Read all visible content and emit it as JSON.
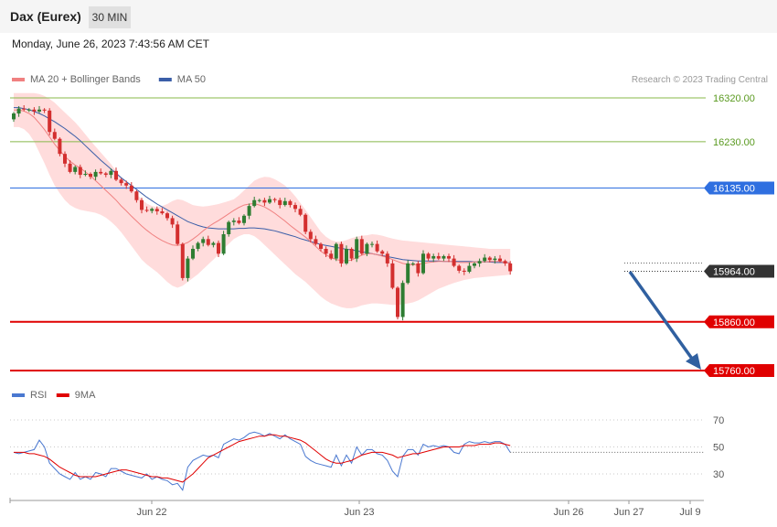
{
  "header": {
    "title": "Dax (Eurex)",
    "timeframe": "30 MIN"
  },
  "datetime": "Monday, June 26, 2023 7:43:56 AM CET",
  "copyright": "Research © 2023 Trading Central",
  "colors": {
    "support": "#e00000",
    "pivot": "#2f6fe0",
    "resistance": "#88b84a",
    "bollinger": "#ffdcdc",
    "ma20": "#f08080",
    "ma50": "#3a5ea8",
    "rsi": "#4a78d0",
    "rsi_ma": "#e00000",
    "up": "#2e7d32",
    "down": "#d32f2f",
    "arrow": "#3060a0"
  },
  "chart_data": [
    {
      "type": "candlestick",
      "legend": [
        {
          "name": "MA 20 + Bollinger Bands",
          "color": "#f08080"
        },
        {
          "name": "MA 50",
          "color": "#3a5ea8"
        }
      ],
      "levels": [
        {
          "label": "16320.00",
          "value": 16320,
          "kind": "resistance"
        },
        {
          "label": "16230.00",
          "value": 16230,
          "kind": "resistance"
        },
        {
          "label": "16135.00",
          "value": 16135,
          "kind": "pivot"
        },
        {
          "label": "15964.00",
          "value": 15964,
          "kind": "last"
        },
        {
          "label": "15860.00",
          "value": 15860,
          "kind": "support"
        },
        {
          "label": "15760.00",
          "value": 15760,
          "kind": "support"
        }
      ],
      "x_ticks": [
        "Jun 22",
        "Jun 23",
        "Jun 26",
        "Jun 27",
        "Jul 9"
      ],
      "close": [
        16288,
        16298,
        16296,
        16296,
        16292,
        16296,
        16294,
        16250,
        16236,
        16205,
        16185,
        16168,
        16178,
        16162,
        16164,
        16158,
        16168,
        16165,
        16162,
        16170,
        16152,
        16145,
        16140,
        16128,
        16110,
        16090,
        16088,
        16092,
        16087,
        16083,
        16073,
        16060,
        16020,
        15950,
        15990,
        16010,
        16022,
        16030,
        16018,
        16022,
        16000,
        16040,
        16065,
        16068,
        16063,
        16078,
        16098,
        16110,
        16110,
        16105,
        16112,
        16110,
        16100,
        16108,
        16100,
        16092,
        16080,
        16045,
        16030,
        16020,
        16010,
        16000,
        15990,
        16020,
        15980,
        16010,
        15990,
        16030,
        16000,
        16020,
        16020,
        16005,
        16000,
        15980,
        15930,
        15870,
        15940,
        15980,
        15980,
        15960,
        16000,
        15990,
        15995,
        15990,
        15995,
        15990,
        15975,
        15965,
        15963,
        15975,
        15980,
        15985,
        15992,
        15987,
        15990,
        15985,
        15980,
        15964
      ],
      "ma20": [
        16295,
        16295,
        16293,
        16288,
        16280,
        16268,
        16255,
        16240,
        16225,
        16212,
        16200,
        16190,
        16182,
        16176,
        16168,
        16160,
        16150,
        16140,
        16130,
        16120,
        16110,
        16098,
        16088,
        16077,
        16067,
        16057,
        16048,
        16040,
        16033,
        16027,
        16022,
        16018,
        16017,
        16019,
        16023,
        16030,
        16038,
        16047,
        16055,
        16062,
        16068,
        16075,
        16082,
        16089,
        16095,
        16100,
        16102,
        16103,
        16100,
        16096,
        16090,
        16083,
        16075,
        16067,
        16058,
        16050,
        16042,
        16034,
        16025,
        16015,
        16005,
        15998,
        15992,
        15988,
        15986,
        15985,
        15987,
        15992,
        15997,
        16000,
        16000,
        15998,
        15995,
        15992,
        15988,
        15984,
        15980,
        15978,
        15977,
        15978,
        15980,
        15982,
        15983,
        15984,
        15984,
        15984,
        15983,
        15982,
        15982,
        15982,
        15983,
        15983,
        15983,
        15984,
        15984,
        15984,
        15982,
        15980
      ],
      "ma50": [
        16300,
        16300,
        16298,
        16296,
        16292,
        16288,
        16283,
        16277,
        16271,
        16264,
        16257,
        16249,
        16241,
        16232,
        16222,
        16212,
        16202,
        16192,
        16183,
        16174,
        16165,
        16156,
        16148,
        16140,
        16132,
        16124,
        16116,
        16109,
        16102,
        16096,
        16090,
        16084,
        16078,
        16072,
        16066,
        16062,
        16058,
        16055,
        16053,
        16052,
        16051,
        16051,
        16051,
        16051,
        16052,
        16052,
        16053,
        16053,
        16052,
        16051,
        16049,
        16047,
        16044,
        16041,
        16038,
        16035,
        16031,
        16028,
        16025,
        16022,
        16019,
        16017,
        16015,
        16013,
        16011,
        16009,
        16008,
        16006,
        16004,
        16002,
        16000,
        15998,
        15996,
        15994,
        15992,
        15990,
        15988,
        15987,
        15986,
        15985,
        15985,
        15985,
        15985,
        15985,
        15984,
        15984,
        15984,
        15984,
        15984,
        15984,
        15983,
        15983,
        15983,
        15983,
        15982,
        15982,
        15982,
        15981
      ],
      "bb_upper": [
        16330,
        16330,
        16330,
        16330,
        16330,
        16328,
        16324,
        16318,
        16310,
        16300,
        16290,
        16280,
        16270,
        16258,
        16245,
        16232,
        16220,
        16208,
        16196,
        16184,
        16170,
        16157,
        16145,
        16133,
        16122,
        16112,
        16103,
        16098,
        16096,
        16098,
        16102,
        16108,
        16112,
        16110,
        16105,
        16100,
        16098,
        16097,
        16098,
        16100,
        16102,
        16105,
        16108,
        16112,
        16120,
        16130,
        16140,
        16150,
        16155,
        16158,
        16157,
        16153,
        16147,
        16140,
        16130,
        16118,
        16104,
        16090,
        16075,
        16060,
        16045,
        16035,
        16028,
        16025,
        16025,
        16028,
        16032,
        16035,
        16037,
        16038,
        16040,
        16039,
        16037,
        16034,
        16031,
        16029,
        16027,
        16026,
        16025,
        16024,
        16023,
        16022,
        16021,
        16020,
        16019,
        16018,
        16017,
        16016,
        16015,
        16014,
        16013,
        16012,
        16011,
        16010,
        16010,
        16010,
        16010,
        16010
      ],
      "bb_lower": [
        16260,
        16260,
        16256,
        16246,
        16230,
        16208,
        16186,
        16162,
        16140,
        16124,
        16110,
        16100,
        16094,
        16090,
        16088,
        16086,
        16084,
        16080,
        16074,
        16066,
        16056,
        16044,
        16030,
        16016,
        16002,
        15988,
        15978,
        15970,
        15962,
        15952,
        15942,
        15934,
        15930,
        15934,
        15942,
        15950,
        15958,
        15968,
        15978,
        15988,
        15998,
        16010,
        16020,
        16030,
        16036,
        16040,
        16040,
        16036,
        16028,
        16018,
        16008,
        15998,
        15988,
        15978,
        15968,
        15958,
        15950,
        15942,
        15932,
        15922,
        15912,
        15904,
        15898,
        15894,
        15890,
        15888,
        15888,
        15890,
        15894,
        15896,
        15898,
        15898,
        15897,
        15896,
        15895,
        15895,
        15896,
        15898,
        15900,
        15904,
        15910,
        15916,
        15922,
        15928,
        15932,
        15936,
        15940,
        15943,
        15946,
        15948,
        15950,
        15951,
        15952,
        15953,
        15954,
        15955,
        15956,
        15957
      ]
    },
    {
      "type": "line",
      "legend": [
        {
          "name": "RSI",
          "color": "#4a78d0"
        },
        {
          "name": "9MA",
          "color": "#e00000"
        }
      ],
      "ylim": [
        20,
        80
      ],
      "y_ticks": [
        70,
        50,
        30
      ],
      "rsi": [
        46,
        45,
        46,
        47,
        48,
        55,
        50,
        38,
        34,
        30,
        28,
        26,
        31,
        26,
        28,
        26,
        31,
        30,
        28,
        34,
        34,
        32,
        30,
        29,
        28,
        27,
        30,
        26,
        28,
        26,
        25,
        22,
        23,
        18,
        35,
        40,
        42,
        44,
        43,
        44,
        42,
        52,
        54,
        56,
        55,
        57,
        60,
        61,
        60,
        58,
        60,
        58,
        56,
        59,
        56,
        54,
        52,
        43,
        40,
        38,
        37,
        36,
        35,
        44,
        36,
        44,
        38,
        50,
        44,
        48,
        48,
        45,
        44,
        40,
        32,
        28,
        43,
        48,
        48,
        44,
        52,
        50,
        51,
        50,
        51,
        50,
        46,
        45,
        52,
        54,
        53,
        53,
        54,
        53,
        54,
        54,
        52,
        46
      ],
      "rsi_ma": [
        46,
        46,
        46,
        45,
        45,
        44,
        43,
        41,
        38,
        35,
        33,
        31,
        29,
        28,
        28,
        28,
        28,
        29,
        30,
        31,
        32,
        33,
        33,
        32,
        31,
        30,
        29,
        28,
        28,
        27,
        27,
        26,
        25,
        24,
        27,
        30,
        34,
        38,
        42,
        44,
        46,
        48,
        50,
        52,
        54,
        55,
        56,
        57,
        58,
        58,
        59,
        59,
        58,
        58,
        57,
        56,
        55,
        53,
        50,
        47,
        44,
        41,
        39,
        38,
        38,
        39,
        40,
        42,
        44,
        45,
        46,
        46,
        46,
        45,
        44,
        42,
        43,
        44,
        45,
        45,
        46,
        47,
        48,
        49,
        50,
        50,
        50,
        50,
        51,
        51,
        51,
        52,
        52,
        52,
        53,
        53,
        52,
        51
      ]
    }
  ]
}
